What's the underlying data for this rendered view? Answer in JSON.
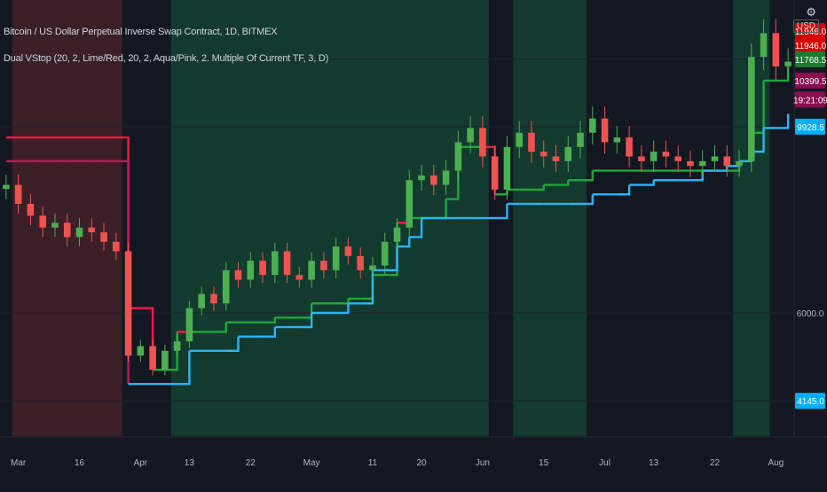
{
  "title": "Bitcoin / US Dollar Perpetual Inverse Swap Contract, 1D, BITMEX",
  "indicator": "Dual VStop (20, 2, Lime/Red, 20, 2, Aqua/Pink, 2. Multiple Of Current TF, 3, D)",
  "currency_label": "USD",
  "gear_glyph": "⚙",
  "colors": {
    "background": "#131722",
    "bull_zone": "#133a2e",
    "bear_zone": "#3b1f27",
    "candle_up": "#4caf50",
    "candle_down": "#ef5350",
    "stop_lime": "#1fa83a",
    "stop_red": "#ff1744",
    "stop_aqua": "#29b6f6",
    "stop_pink": "#c2185b",
    "grid": "#1e222d"
  },
  "price_badges": [
    {
      "label": "11946.0",
      "price": 11946,
      "color": "#d50000"
    },
    {
      "label": "11946.0",
      "price": 11650,
      "color": "#d50000"
    },
    {
      "label": "11768.5",
      "price": 11350,
      "color": "#1b7a2e"
    },
    {
      "label": "10399.5",
      "price": 10900,
      "color": "#880e4f"
    },
    {
      "label": "19:21:09",
      "price": 10500,
      "color": "#880e4f"
    },
    {
      "label": "9928.5",
      "price": 9928.5,
      "color": "#00b0ff"
    },
    {
      "label": "4145.0",
      "price": 4145,
      "color": "#00b0ff"
    }
  ],
  "chart_data": {
    "type": "candlestick",
    "x_tick_labels": [
      "Mar",
      "16",
      "Apr",
      "13",
      "22",
      "May",
      "11",
      "20",
      "Jun",
      "15",
      "Jul",
      "13",
      "22",
      "Aug"
    ],
    "y_tick_labels": [
      "6000.0"
    ],
    "y_range": [
      3400,
      12600
    ],
    "series": [
      {
        "name": "Price",
        "values": [
          8700,
          8300,
          8050,
          7800,
          7900,
          7600,
          7800,
          7700,
          7500,
          7300,
          5100,
          5300,
          4800,
          5200,
          5400,
          6100,
          6400,
          6200,
          6900,
          6700,
          7100,
          6800,
          7300,
          6800,
          6700,
          7100,
          6900,
          7400,
          7200,
          6900,
          7000,
          7500,
          7800,
          8800,
          8900,
          8700,
          9000,
          9600,
          9900,
          9300,
          8600,
          9500,
          9800,
          9400,
          9300,
          9200,
          9500,
          9800,
          10100,
          9600,
          9700,
          9300,
          9200,
          9400,
          9300,
          9200,
          9100,
          9200,
          9300,
          9100,
          9200,
          11400,
          11900,
          11200,
          11300
        ]
      },
      {
        "name": "VStop 1",
        "values": [
          9700,
          9700,
          9700,
          9700,
          9700,
          9700,
          9700,
          9700,
          9700,
          9700,
          6100,
          6100,
          4800,
          4800,
          5600,
          5600,
          5600,
          5600,
          5800,
          5800,
          5800,
          5800,
          5900,
          5900,
          5900,
          6200,
          6200,
          6200,
          6300,
          6300,
          6800,
          6800,
          7900,
          8000,
          8000,
          8000,
          8400,
          9500,
          9500,
          9500,
          8500,
          8600,
          8600,
          8600,
          8700,
          8700,
          8800,
          8800,
          9000,
          9000,
          9000,
          9000,
          9000,
          9000,
          9000,
          9000,
          9000,
          9000,
          9000,
          9000,
          9200,
          9800,
          10900,
          10900,
          11200
        ]
      },
      {
        "name": "VStop 2",
        "values": [
          9200,
          9200,
          9200,
          9200,
          9200,
          9200,
          9200,
          9200,
          9200,
          9200,
          4500,
          4500,
          4500,
          4500,
          4500,
          5200,
          5200,
          5200,
          5200,
          5500,
          5500,
          5500,
          5700,
          5700,
          5700,
          6000,
          6000,
          6000,
          6200,
          6200,
          6900,
          6900,
          7400,
          7600,
          8000,
          8000,
          8000,
          8000,
          8000,
          8000,
          8000,
          8300,
          8300,
          8300,
          8300,
          8300,
          8300,
          8300,
          8500,
          8500,
          8500,
          8700,
          8700,
          8800,
          8800,
          8800,
          8800,
          9000,
          9000,
          9100,
          9200,
          9400,
          9900,
          9900,
          10200
        ]
      }
    ],
    "zones": [
      {
        "start": 0.5,
        "end": 9.5,
        "state": "bear"
      },
      {
        "start": 13.5,
        "end": 39.5,
        "state": "bull"
      },
      {
        "start": 41.5,
        "end": 47.5,
        "state": "bull"
      },
      {
        "start": 59.5,
        "end": 62.5,
        "state": "bull"
      }
    ]
  }
}
